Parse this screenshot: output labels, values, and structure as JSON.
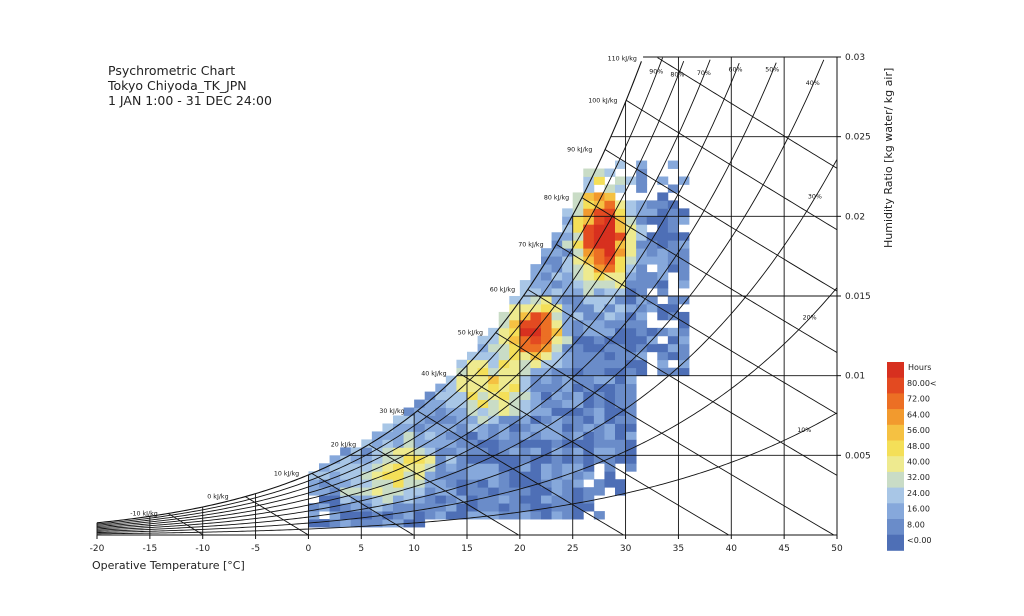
{
  "chart_data": {
    "type": "heatmap",
    "title_lines": [
      "Psychrometric Chart",
      "Tokyo Chiyoda_TK_JPN",
      "1 JAN 1:00 - 31 DEC 24:00"
    ],
    "xlabel": "Operative Temperature [°C]",
    "ylabel": "Humidity Ratio [kg water/ kg air]",
    "xlim": [
      -20,
      50
    ],
    "ylim": [
      0,
      0.03
    ],
    "x_ticks": [
      "-20",
      "-15",
      "-10",
      "-5",
      "0",
      "5",
      "10",
      "15",
      "20",
      "25",
      "30",
      "35",
      "40",
      "45",
      "50"
    ],
    "y_ticks": [
      {
        "v": 0.005,
        "label": "0.005"
      },
      {
        "v": 0.01,
        "label": "0.01"
      },
      {
        "v": 0.015,
        "label": "0.015"
      },
      {
        "v": 0.02,
        "label": "0.02"
      },
      {
        "v": 0.025,
        "label": "0.025"
      },
      {
        "v": 0.03,
        "label": "0.03"
      }
    ],
    "enthalpy_lines": [
      {
        "h": -10,
        "label": "-10 kJ/kg"
      },
      {
        "h": 0,
        "label": "0 kJ/kg"
      },
      {
        "h": 10,
        "label": "10 kJ/kg"
      },
      {
        "h": 20,
        "label": "20 kJ/kg"
      },
      {
        "h": 30,
        "label": "30 kJ/kg"
      },
      {
        "h": 40,
        "label": "40 kJ/kg"
      },
      {
        "h": 50,
        "label": "50 kJ/kg"
      },
      {
        "h": 60,
        "label": "60 kJ/kg"
      },
      {
        "h": 70,
        "label": "70 kJ/kg"
      },
      {
        "h": 80,
        "label": "80 kJ/kg"
      },
      {
        "h": 90,
        "label": "90 kJ/kg"
      },
      {
        "h": 100,
        "label": "100 kJ/kg"
      },
      {
        "h": 110,
        "label": "110 kJ/kg"
      }
    ],
    "rh_curves": [
      {
        "rh": 10,
        "label": "10%",
        "t": 47
      },
      {
        "rh": 20,
        "label": "20%",
        "t": 47.5
      },
      {
        "rh": 30,
        "label": "30%",
        "t": 48
      },
      {
        "rh": 40,
        "label": "40%",
        "t": 47.8
      },
      {
        "rh": 50,
        "label": "50%",
        "t": 44
      },
      {
        "rh": 60,
        "label": "60%",
        "t": 40.5
      },
      {
        "rh": 70,
        "label": "70%",
        "t": 37.5
      },
      {
        "rh": 80,
        "label": "80%",
        "t": 35
      },
      {
        "rh": 90,
        "label": "90%",
        "t": 33
      },
      {
        "rh": 100,
        "label": "",
        "t": 0
      }
    ],
    "bin_size": {
      "t": 1,
      "w": 0.0005
    },
    "legend": {
      "title": "Hours",
      "labels": [
        "80.00<",
        "72.00",
        "64.00",
        "56.00",
        "48.00",
        "40.00",
        "32.00",
        "24.00",
        "16.00",
        "8.00",
        "<0.00"
      ],
      "colors": [
        "#d7301f",
        "#e34a21",
        "#ec6f24",
        "#f29a2e",
        "#f5c142",
        "#f4df58",
        "#eeea8f",
        "#c9dcc6",
        "#a8c6e6",
        "#86a8db",
        "#6a8cc9",
        "#4e6fb6"
      ]
    },
    "grid": true,
    "legend_position": "right"
  }
}
